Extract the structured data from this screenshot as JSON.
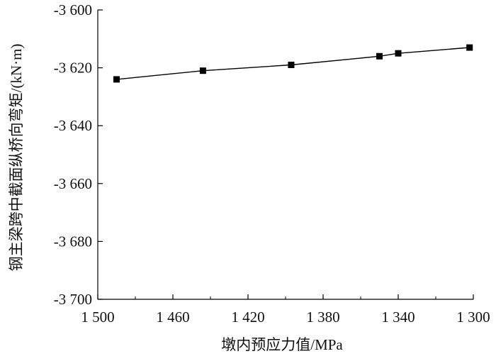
{
  "chart_data": {
    "type": "line",
    "xlabel": "墩内预应力值/MPa",
    "ylabel": "钢主梁跨中截面纵桥向弯矩/(kN·m)",
    "x_reversed": true,
    "xlim": [
      1500,
      1300
    ],
    "ylim": [
      -3700,
      -3600
    ],
    "x_ticks": [
      1500,
      1460,
      1420,
      1380,
      1340,
      1300
    ],
    "x_tick_labels": [
      "1 500",
      "1 460",
      "1 420",
      "1 380",
      "1 340",
      "1 300"
    ],
    "y_ticks": [
      -3600,
      -3620,
      -3640,
      -3660,
      -3680,
      -3700
    ],
    "y_tick_labels": [
      "-3 600",
      "-3 620",
      "-3 640",
      "-3 660",
      "-3 680",
      "-3 700"
    ],
    "grid": false,
    "series": [
      {
        "marker": "square",
        "color": "#000000",
        "x": [
          1490,
          1444,
          1397,
          1350,
          1340,
          1302
        ],
        "y": [
          -3624,
          -3621,
          -3619,
          -3616,
          -3615,
          -3613
        ]
      }
    ]
  }
}
